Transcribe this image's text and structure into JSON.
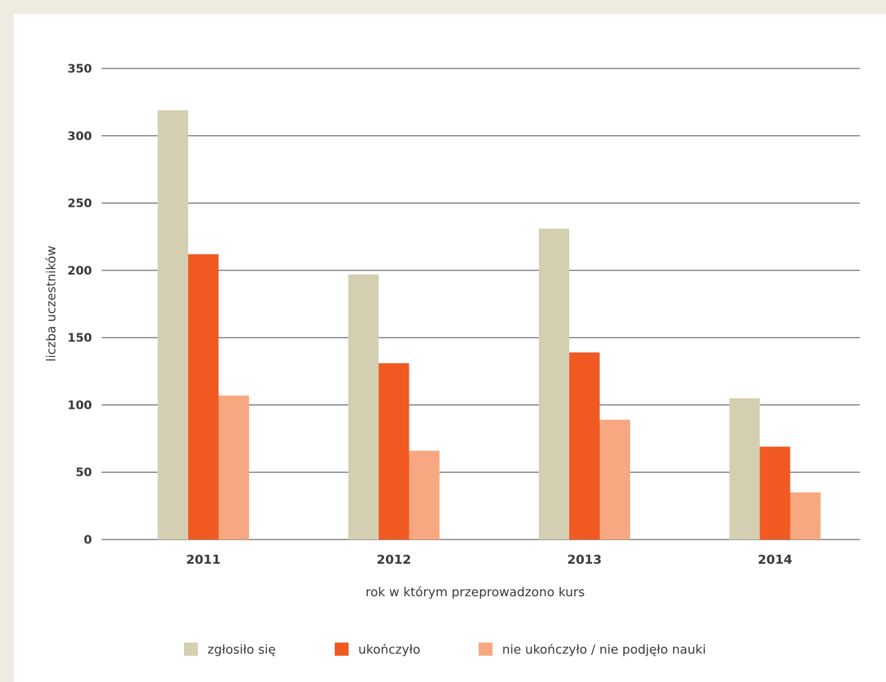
{
  "chart_data": {
    "type": "bar",
    "xlabel": "rok w którym przeprowadzono kurs",
    "ylabel": "liczba uczestników",
    "ylim": [
      0,
      350
    ],
    "yticks": [
      "0",
      "50",
      "100",
      "150",
      "200",
      "250",
      "300",
      "350"
    ],
    "grid": true,
    "legend_position": "bottom",
    "categories": [
      "2011",
      "2012",
      "2013",
      "2014"
    ],
    "series": [
      {
        "name": "zgłosiło się",
        "color": "#d4cfb1",
        "values": [
          319,
          197,
          231,
          105
        ]
      },
      {
        "name": "ukończyło",
        "color": "#f05a22",
        "values": [
          212,
          131,
          139,
          69
        ]
      },
      {
        "name": "nie ukończyło / nie podjęło nauki",
        "color": "#f7a880",
        "values": [
          107,
          66,
          89,
          35
        ]
      }
    ]
  }
}
